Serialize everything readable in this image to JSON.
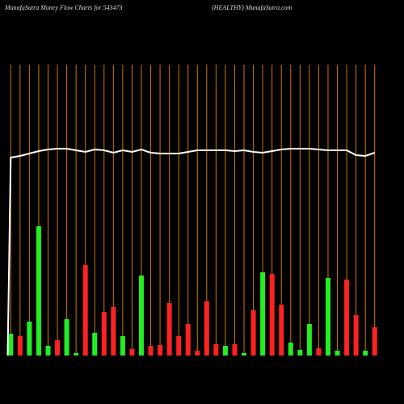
{
  "chart_data": {
    "type": "bar",
    "title": "MunafaSutra  Money Flow  Charts for 543473",
    "subtitle": "(HEALTHY) MunafaSutra.com",
    "categories": [
      null,
      null,
      null,
      null,
      null,
      null,
      null,
      null,
      null,
      null,
      null,
      null,
      null,
      null,
      null,
      null,
      null,
      null,
      null,
      null,
      null,
      null,
      null,
      null,
      null,
      null,
      null,
      null,
      null,
      null,
      null,
      null,
      null,
      null,
      null,
      null,
      null,
      null,
      null,
      null
    ],
    "values": [
      27,
      24,
      42,
      160,
      12,
      19,
      45,
      3,
      112,
      28,
      54,
      60,
      24,
      8,
      99,
      12,
      13,
      65,
      24,
      39,
      6,
      67,
      14,
      12,
      14,
      3,
      56,
      103,
      101,
      63,
      16,
      7,
      39,
      9,
      96,
      6,
      94,
      50,
      6,
      35
    ],
    "colors": [
      "#22ee22",
      "#ff2222",
      "#22ee22",
      "#22ee22",
      "#22ee22",
      "#ff2222",
      "#22ee22",
      "#22ee22",
      "#ff2222",
      "#22ee22",
      "#ff2222",
      "#ff2222",
      "#22ee22",
      "#ff2222",
      "#22ee22",
      "#ff2222",
      "#ff2222",
      "#ff2222",
      "#ff2222",
      "#ff2222",
      "#ff2222",
      "#ff2222",
      "#ff2222",
      "#22ee22",
      "#ff2222",
      "#22ee22",
      "#ff2222",
      "#22ee22",
      "#ff2222",
      "#ff2222",
      "#22ee22",
      "#22ee22",
      "#22ee22",
      "#ff2222",
      "#22ee22",
      "#22ee22",
      "#ff2222",
      "#ff2222",
      "#22ee22",
      "#ff2222"
    ],
    "line_values": [
      245,
      247,
      250,
      253,
      255,
      256,
      256,
      254,
      252,
      255,
      254,
      251,
      254,
      252,
      255,
      251,
      250,
      250,
      250,
      252,
      254,
      254,
      254,
      254,
      253,
      254,
      252,
      251,
      253,
      255,
      256,
      256,
      256,
      255,
      254,
      254,
      254,
      248,
      247,
      251
    ],
    "line_color": "#ffffff",
    "grid_color": "#cc7a00",
    "ylim": [
      0,
      440
    ]
  }
}
